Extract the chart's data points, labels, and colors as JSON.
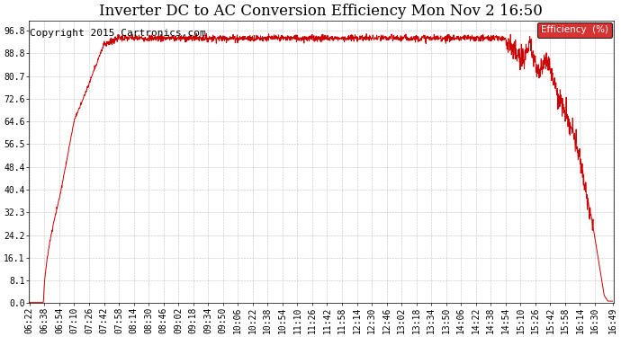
{
  "title": "Inverter DC to AC Conversion Efficiency Mon Nov 2 16:50",
  "copyright": "Copyright 2015 Cartronics.com",
  "legend_label": "Efficiency  (%)",
  "legend_bg": "#cc0000",
  "legend_text_color": "#ffffff",
  "line_color": "#cc0000",
  "bg_color": "#ffffff",
  "plot_bg_color": "#ffffff",
  "grid_color": "#999999",
  "yticks": [
    0.0,
    8.1,
    16.1,
    24.2,
    32.3,
    40.4,
    48.4,
    56.5,
    64.6,
    72.6,
    80.7,
    88.8,
    96.8
  ],
  "xtick_labels": [
    "06:22",
    "06:38",
    "06:54",
    "07:10",
    "07:26",
    "07:42",
    "07:58",
    "08:14",
    "08:30",
    "08:46",
    "09:02",
    "09:18",
    "09:34",
    "09:50",
    "10:06",
    "10:22",
    "10:38",
    "10:54",
    "11:10",
    "11:26",
    "11:42",
    "11:58",
    "12:14",
    "12:30",
    "12:46",
    "13:02",
    "13:18",
    "13:34",
    "13:50",
    "14:06",
    "14:22",
    "14:38",
    "14:54",
    "15:10",
    "15:26",
    "15:42",
    "15:58",
    "16:14",
    "16:30",
    "16:49"
  ],
  "title_fontsize": 12,
  "tick_fontsize": 7,
  "copyright_fontsize": 8,
  "figwidth": 6.9,
  "figheight": 3.75,
  "dpi": 100
}
